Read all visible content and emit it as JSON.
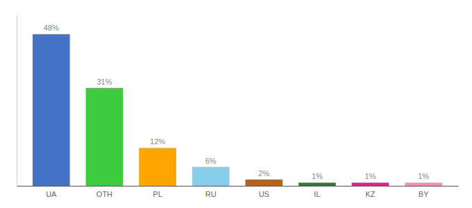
{
  "chart_data": {
    "type": "bar",
    "categories": [
      "UA",
      "OTH",
      "PL",
      "RU",
      "US",
      "IL",
      "KZ",
      "BY"
    ],
    "values": [
      48,
      31,
      12,
      6,
      2,
      1,
      1,
      1
    ],
    "value_labels": [
      "48%",
      "31%",
      "12%",
      "6%",
      "2%",
      "1%",
      "1%",
      "1%"
    ],
    "colors": [
      "#4472c4",
      "#3dcc3d",
      "#ffa500",
      "#87ceeb",
      "#b8621a",
      "#2e7d32",
      "#e91e8c",
      "#f48fb1"
    ],
    "ylim": [
      0,
      54
    ],
    "data_labels": true,
    "tick_labels": "x",
    "grid": false
  }
}
